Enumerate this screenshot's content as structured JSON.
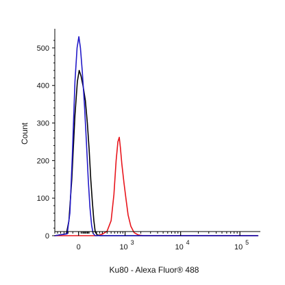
{
  "chart_data": {
    "type": "line",
    "xlabel": "Ku80 - Alexa Fluor® 488",
    "ylabel": "Count",
    "x_scale": "biexponential",
    "ylim": [
      0,
      540
    ],
    "x_ticks": [
      {
        "base": "0",
        "exp": ""
      },
      {
        "base": "10",
        "exp": "3"
      },
      {
        "base": "10",
        "exp": "4"
      },
      {
        "base": "10",
        "exp": "5"
      }
    ],
    "y_ticks": [
      "0",
      "100",
      "200",
      "300",
      "400",
      "500"
    ],
    "y_tick_values": [
      0,
      100,
      200,
      300,
      400,
      500
    ],
    "series": [
      {
        "color": "#e8141b",
        "points": [
          [
            -300,
            0
          ],
          [
            200,
            0
          ],
          [
            300,
            4
          ],
          [
            400,
            12
          ],
          [
            500,
            40
          ],
          [
            580,
            110
          ],
          [
            650,
            200
          ],
          [
            710,
            250
          ],
          [
            760,
            262
          ],
          [
            800,
            235
          ],
          [
            860,
            190
          ],
          [
            950,
            140
          ],
          [
            1050,
            95
          ],
          [
            1150,
            55
          ],
          [
            1300,
            25
          ],
          [
            1500,
            8
          ],
          [
            1800,
            2
          ],
          [
            2200,
            0
          ],
          [
            200000,
            0
          ]
        ]
      },
      {
        "color": "#000000",
        "points": [
          [
            -300,
            0
          ],
          [
            -120,
            5
          ],
          [
            -90,
            40
          ],
          [
            -60,
            150
          ],
          [
            -30,
            320
          ],
          [
            -10,
            410
          ],
          [
            5,
            440
          ],
          [
            20,
            425
          ],
          [
            40,
            395
          ],
          [
            60,
            360
          ],
          [
            80,
            300
          ],
          [
            100,
            230
          ],
          [
            120,
            150
          ],
          [
            140,
            90
          ],
          [
            160,
            40
          ],
          [
            180,
            10
          ],
          [
            210,
            2
          ],
          [
            260,
            0
          ],
          [
            200000,
            0
          ]
        ]
      },
      {
        "color": "#2219c8",
        "points": [
          [
            -300,
            0
          ],
          [
            -110,
            5
          ],
          [
            -80,
            60
          ],
          [
            -55,
            210
          ],
          [
            -30,
            410
          ],
          [
            -12,
            500
          ],
          [
            2,
            530
          ],
          [
            15,
            500
          ],
          [
            30,
            440
          ],
          [
            50,
            350
          ],
          [
            70,
            250
          ],
          [
            90,
            150
          ],
          [
            110,
            75
          ],
          [
            130,
            28
          ],
          [
            150,
            6
          ],
          [
            180,
            0
          ],
          [
            200000,
            0
          ]
        ]
      }
    ]
  }
}
